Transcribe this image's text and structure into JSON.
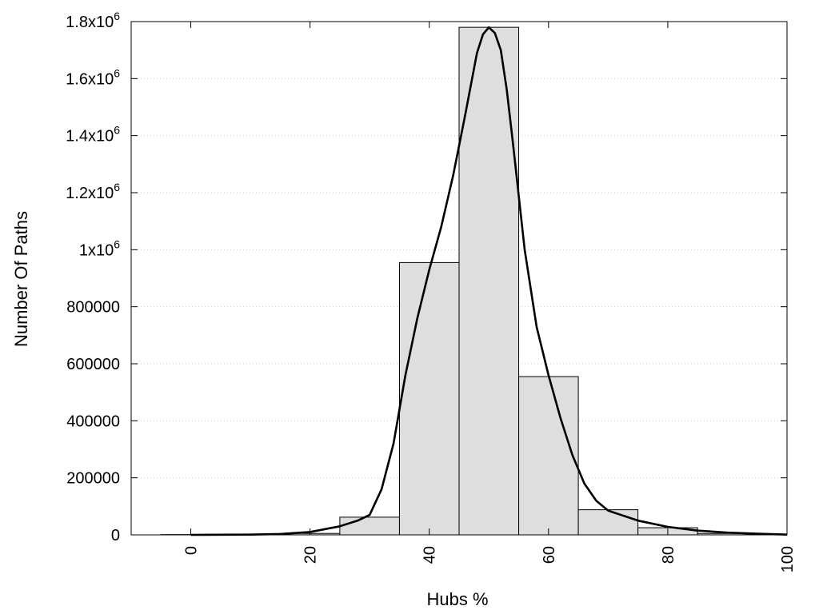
{
  "chart_data": {
    "type": "bar",
    "title": "",
    "xlabel": "Hubs %",
    "ylabel": "Number Of Paths",
    "xlim": [
      -10,
      100
    ],
    "ylim": [
      0,
      1800000
    ],
    "grid": true,
    "x_ticks": [
      0,
      20,
      40,
      60,
      80,
      100
    ],
    "y_ticks": [
      {
        "value": 0,
        "base": "0",
        "exp": ""
      },
      {
        "value": 200000,
        "base": "200000",
        "exp": ""
      },
      {
        "value": 400000,
        "base": "400000",
        "exp": ""
      },
      {
        "value": 600000,
        "base": "600000",
        "exp": ""
      },
      {
        "value": 800000,
        "base": "800000",
        "exp": ""
      },
      {
        "value": 1000000,
        "base": "1x10",
        "exp": "6"
      },
      {
        "value": 1200000,
        "base": "1.2x10",
        "exp": "6"
      },
      {
        "value": 1400000,
        "base": "1.4x10",
        "exp": "6"
      },
      {
        "value": 1600000,
        "base": "1.6x10",
        "exp": "6"
      },
      {
        "value": 1800000,
        "base": "1.8x10",
        "exp": "6"
      }
    ],
    "bin_width": 10,
    "categories": [
      0,
      10,
      20,
      30,
      40,
      50,
      60,
      70,
      80,
      90
    ],
    "values": [
      1000,
      2000,
      5000,
      62000,
      955000,
      1780000,
      555000,
      88000,
      25000,
      5000
    ],
    "series": [
      {
        "type": "histogram",
        "x": [
          0,
          10,
          20,
          30,
          40,
          50,
          60,
          70,
          80,
          90
        ],
        "values": [
          1000,
          2000,
          5000,
          62000,
          955000,
          1780000,
          555000,
          88000,
          25000,
          5000
        ]
      },
      {
        "type": "line",
        "x": [
          0,
          10,
          15,
          20,
          25,
          28,
          30,
          32,
          34,
          36,
          38,
          40,
          42,
          44,
          46,
          47,
          48,
          49,
          50,
          51,
          52,
          53,
          54,
          56,
          58,
          60,
          62,
          64,
          66,
          68,
          70,
          75,
          80,
          85,
          90,
          95,
          100
        ],
        "y": [
          0,
          1000,
          3000,
          10000,
          30000,
          50000,
          70000,
          160000,
          320000,
          560000,
          760000,
          930000,
          1080000,
          1260000,
          1470000,
          1580000,
          1690000,
          1755000,
          1780000,
          1760000,
          1700000,
          1560000,
          1380000,
          1000000,
          730000,
          560000,
          410000,
          280000,
          180000,
          120000,
          85000,
          50000,
          28000,
          15000,
          8000,
          4000,
          1000
        ]
      }
    ]
  }
}
